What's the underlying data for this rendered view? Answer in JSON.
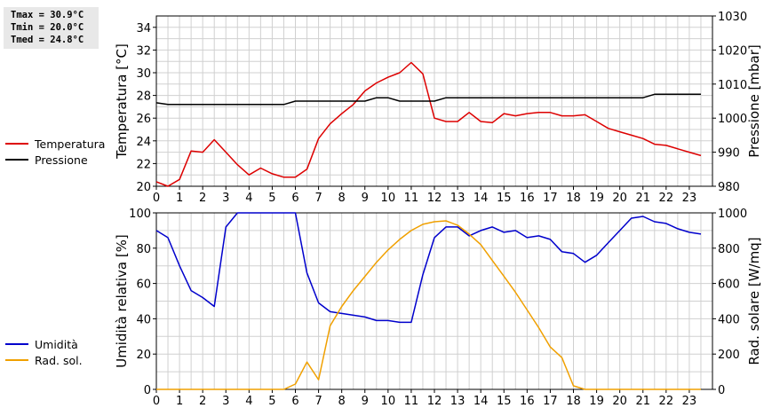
{
  "stats": {
    "tmax": "Tmax = 30.9°C",
    "tmin": "Tmin = 20.0°C",
    "tmed": "Tmed = 24.8°C"
  },
  "colors": {
    "temperature": "#dd0000",
    "pressure": "#000000",
    "humidity": "#0000cc",
    "solar": "#f0a000",
    "grid": "#d0d0d0"
  },
  "chart_data": [
    {
      "type": "line",
      "title": "",
      "xlabel": "",
      "ylabel": "Temperatura [°C]",
      "y2label": "Pressione [mbar]",
      "xlim": [
        0,
        24
      ],
      "ylim": [
        20,
        35
      ],
      "y2lim": [
        980,
        1030
      ],
      "xticks": [
        0,
        1,
        2,
        3,
        4,
        5,
        6,
        7,
        8,
        9,
        10,
        11,
        12,
        13,
        14,
        15,
        16,
        17,
        18,
        19,
        20,
        21,
        22,
        23
      ],
      "yticks": [
        20,
        22,
        24,
        26,
        28,
        30,
        32,
        34
      ],
      "y2ticks": [
        980,
        990,
        1000,
        1010,
        1020,
        1030
      ],
      "grid": true,
      "legend": "left-outside",
      "series": [
        {
          "name": "Temperatura",
          "axis": "left",
          "x": [
            0,
            0.5,
            1,
            1.5,
            2,
            2.5,
            3,
            3.5,
            4,
            4.5,
            5,
            5.5,
            6,
            6.5,
            7,
            7.5,
            8,
            8.5,
            9,
            9.5,
            10,
            10.5,
            11,
            11.5,
            12,
            12.5,
            13,
            13.5,
            14,
            14.5,
            15,
            15.5,
            16,
            16.5,
            17,
            17.5,
            18,
            18.5,
            19,
            19.5,
            20,
            20.5,
            21,
            21.5,
            22,
            22.5,
            23,
            23.5
          ],
          "values": [
            20.4,
            20.0,
            20.6,
            23.1,
            23.0,
            24.1,
            23.0,
            21.9,
            21.0,
            21.6,
            21.1,
            20.8,
            20.8,
            21.5,
            24.2,
            25.5,
            26.4,
            27.2,
            28.4,
            29.1,
            29.6,
            30.0,
            30.9,
            29.9,
            26.0,
            25.7,
            25.7,
            26.5,
            25.7,
            25.6,
            26.4,
            26.2,
            26.4,
            26.5,
            26.5,
            26.2,
            26.2,
            26.3,
            25.7,
            25.1,
            24.8,
            24.5,
            24.2,
            23.7,
            23.6,
            23.3,
            23.0,
            22.7
          ]
        },
        {
          "name": "Pressione",
          "axis": "right",
          "x": [
            0,
            0.5,
            1,
            1.5,
            2,
            2.5,
            3,
            3.5,
            4,
            4.5,
            5,
            5.5,
            6,
            6.5,
            7,
            7.5,
            8,
            8.5,
            9,
            9.5,
            10,
            10.5,
            11,
            11.5,
            12,
            12.5,
            13,
            13.5,
            14,
            14.5,
            15,
            15.5,
            16,
            16.5,
            17,
            17.5,
            18,
            18.5,
            19,
            19.5,
            20,
            20.5,
            21,
            21.5,
            22,
            22.5,
            23,
            23.5
          ],
          "values": [
            1004.5,
            1004,
            1004,
            1004,
            1004,
            1004,
            1004,
            1004,
            1004,
            1004,
            1004,
            1004,
            1005,
            1005,
            1005,
            1005,
            1005,
            1005,
            1005,
            1006,
            1006,
            1005,
            1005,
            1005,
            1005,
            1006,
            1006,
            1006,
            1006,
            1006,
            1006,
            1006,
            1006,
            1006,
            1006,
            1006,
            1006,
            1006,
            1006,
            1006,
            1006,
            1006,
            1006,
            1007,
            1007,
            1007,
            1007,
            1007
          ]
        }
      ]
    },
    {
      "type": "line",
      "title": "",
      "xlabel": "",
      "ylabel": "Umidità relativa [%]",
      "y2label": "Rad. solare [W/mq]",
      "xlim": [
        0,
        24
      ],
      "ylim": [
        0,
        100
      ],
      "y2lim": [
        0,
        1000
      ],
      "xticks": [
        0,
        1,
        2,
        3,
        4,
        5,
        6,
        7,
        8,
        9,
        10,
        11,
        12,
        13,
        14,
        15,
        16,
        17,
        18,
        19,
        20,
        21,
        22,
        23
      ],
      "yticks": [
        0,
        20,
        40,
        60,
        80,
        100
      ],
      "y2ticks": [
        0,
        200,
        400,
        600,
        800,
        1000
      ],
      "grid": true,
      "legend": "left-outside",
      "series": [
        {
          "name": "Umidità",
          "axis": "left",
          "x": [
            0,
            0.5,
            1,
            1.5,
            2,
            2.5,
            3,
            3.5,
            4,
            4.5,
            5,
            5.5,
            6,
            6.5,
            7,
            7.5,
            8,
            8.5,
            9,
            9.5,
            10,
            10.5,
            11,
            11.5,
            12,
            12.5,
            13,
            13.5,
            14,
            14.5,
            15,
            15.5,
            16,
            16.5,
            17,
            17.5,
            18,
            18.5,
            19,
            19.5,
            20,
            20.5,
            21,
            21.5,
            22,
            22.5,
            23,
            23.5
          ],
          "values": [
            90,
            86,
            70,
            56,
            52,
            47,
            92,
            100,
            100,
            100,
            100,
            100,
            100,
            66,
            49,
            44,
            43,
            42,
            41,
            39,
            39,
            38,
            38,
            65,
            86,
            92,
            92,
            87,
            90,
            92,
            89,
            90,
            86,
            87,
            85,
            78,
            77,
            72,
            76,
            83,
            90,
            97,
            98,
            95,
            94,
            91,
            89,
            88
          ]
        },
        {
          "name": "Rad. sol.",
          "axis": "right",
          "x": [
            0,
            0.5,
            1,
            1.5,
            2,
            2.5,
            3,
            3.5,
            4,
            4.5,
            5,
            5.5,
            6,
            6.5,
            7,
            7.5,
            8,
            8.5,
            9,
            9.5,
            10,
            10.5,
            11,
            11.5,
            12,
            12.5,
            13,
            13.5,
            14,
            14.5,
            15,
            15.5,
            16,
            16.5,
            17,
            17.5,
            18,
            18.5,
            19,
            19.5,
            20,
            20.5,
            21,
            21.5,
            22,
            22.5,
            23,
            23.5
          ],
          "values": [
            0,
            0,
            0,
            0,
            0,
            0,
            0,
            0,
            0,
            0,
            0,
            0,
            30,
            155,
            55,
            360,
            470,
            560,
            640,
            720,
            790,
            850,
            900,
            935,
            950,
            955,
            930,
            880,
            820,
            730,
            640,
            550,
            450,
            350,
            240,
            180,
            20,
            0,
            0,
            0,
            0,
            0,
            0,
            0,
            0,
            0,
            0,
            0
          ]
        }
      ]
    }
  ]
}
